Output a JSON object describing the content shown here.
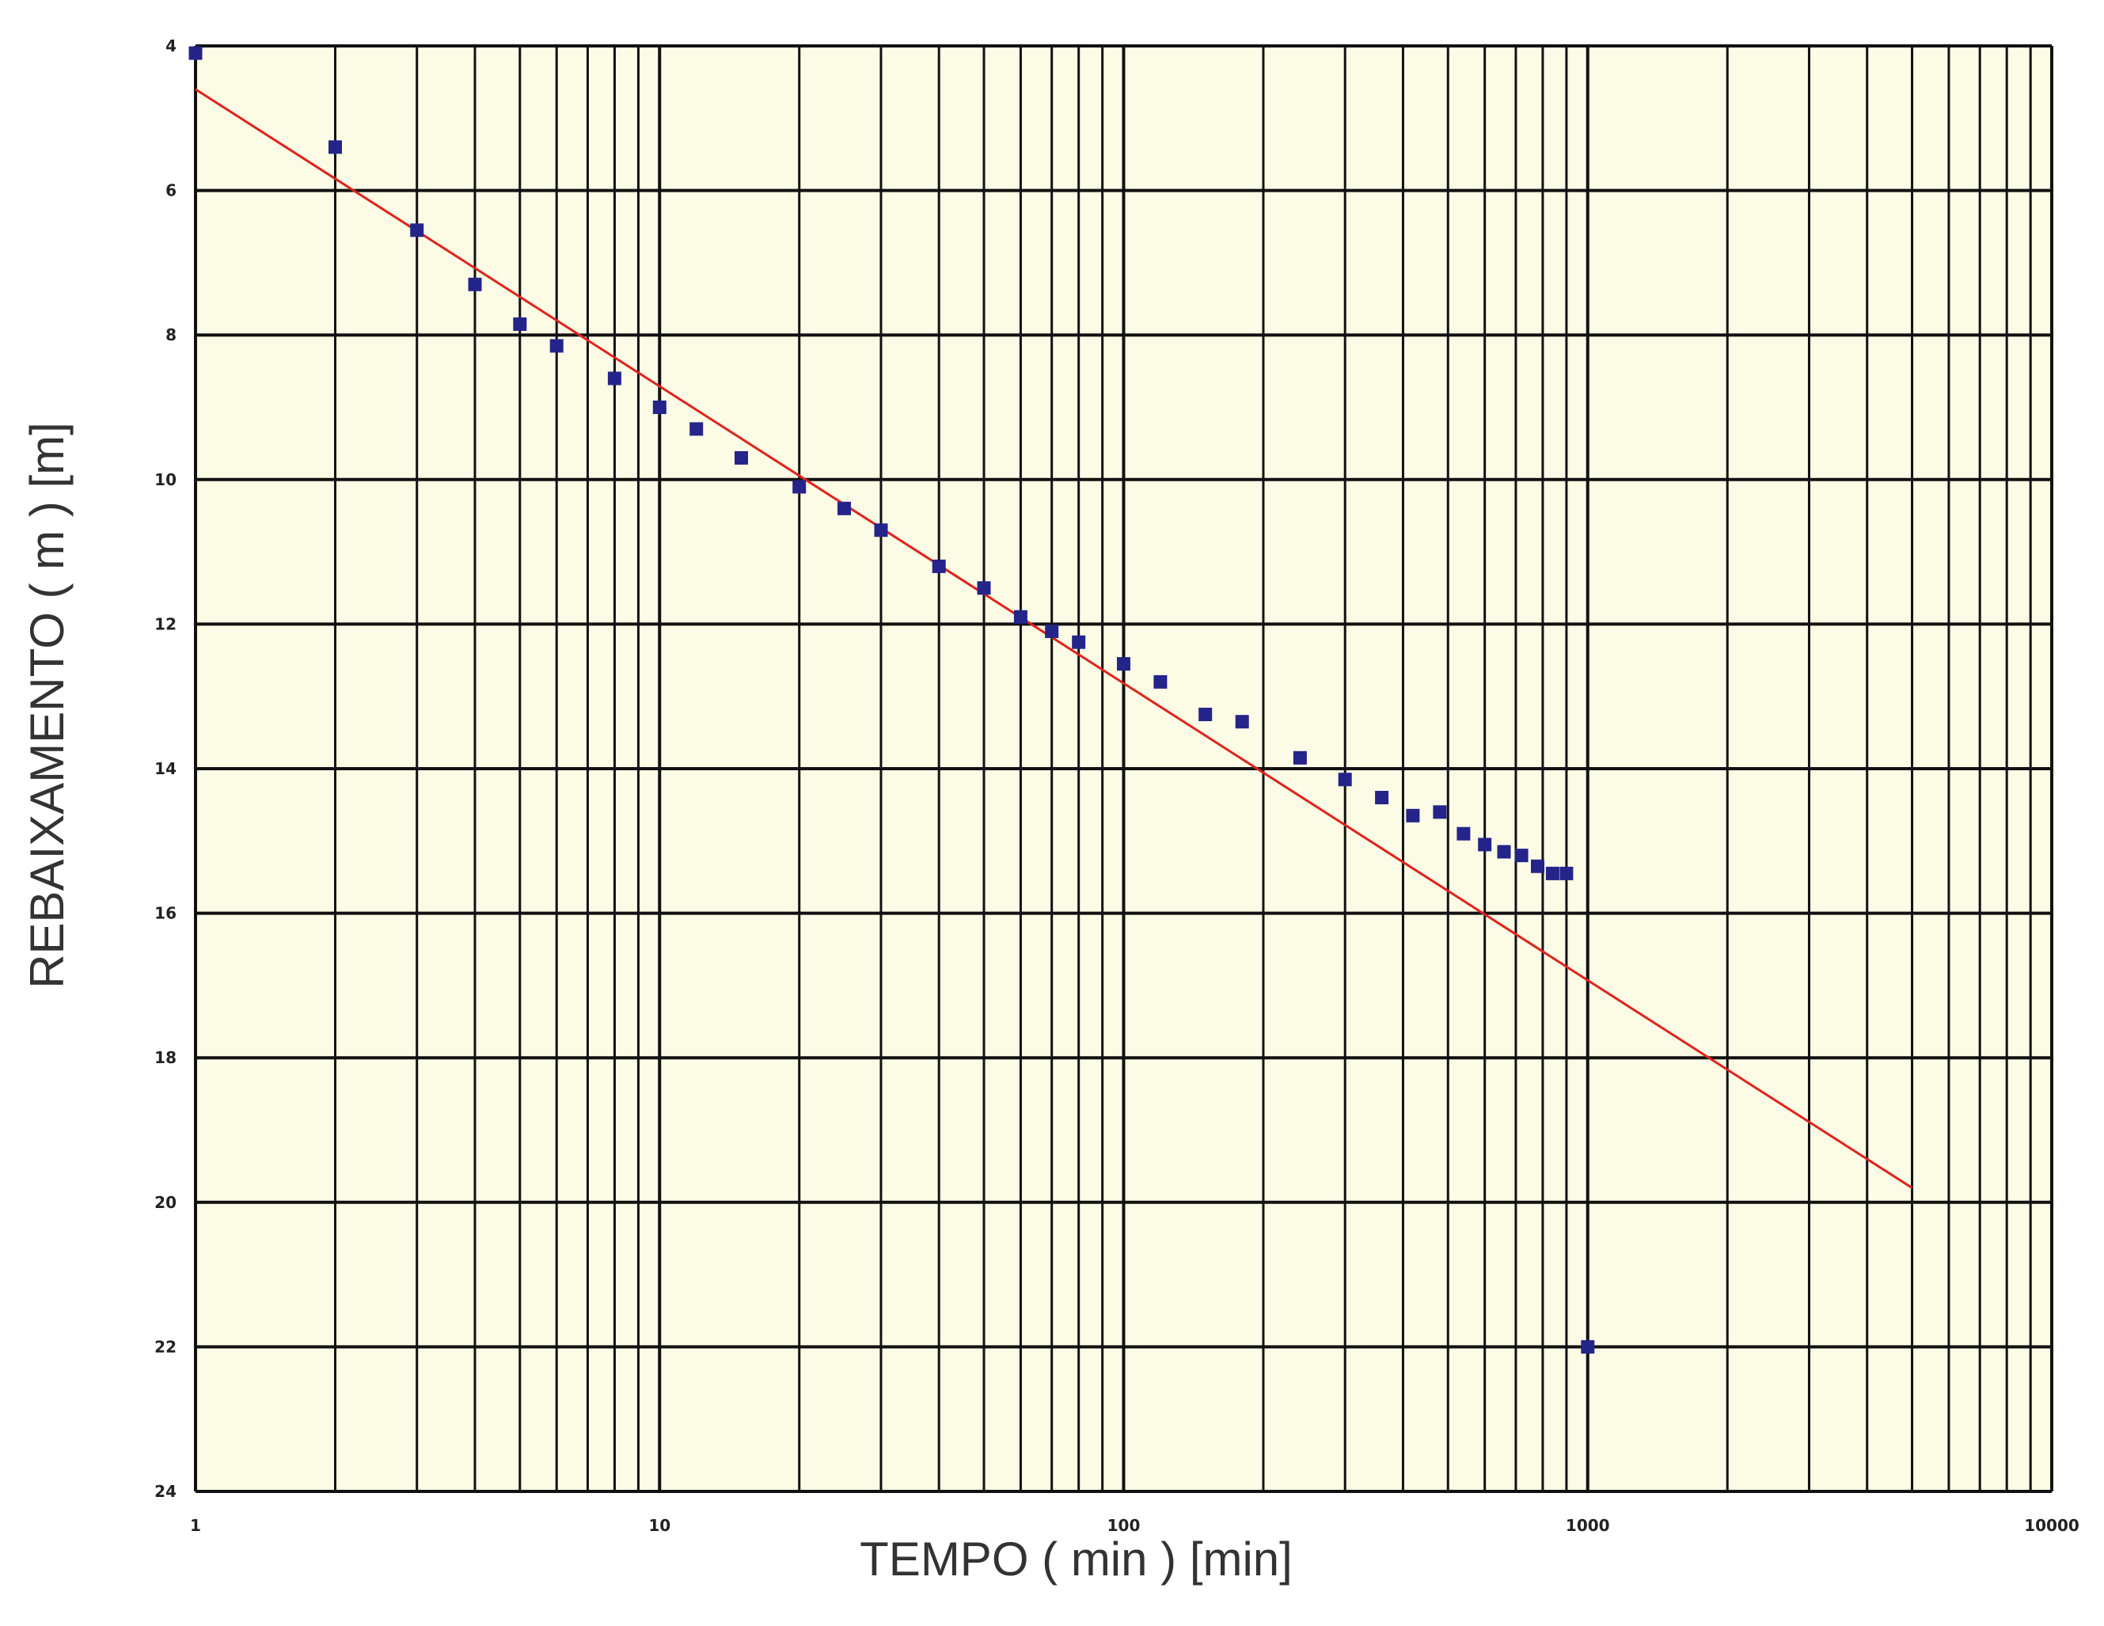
{
  "colors": {
    "plot_background": "#fbfbe6",
    "grid": "#111111",
    "fit_line": "#e0231b",
    "points": "#24248a"
  },
  "chart_data": {
    "type": "scatter",
    "x_scale": "log",
    "y_inverted": true,
    "xlim": [
      1,
      10000
    ],
    "ylim": [
      4,
      24
    ],
    "grid": true,
    "xlabel": "TEMPO ( min ) [min]",
    "ylabel": "REBAIXAMENTO ( m ) [m]",
    "x_ticks": [
      "1",
      "10",
      "100",
      "1000",
      "10000"
    ],
    "y_ticks": [
      "4",
      "6",
      "8",
      "10",
      "12",
      "14",
      "16",
      "18",
      "20",
      "22",
      "24"
    ],
    "series": [
      {
        "kind": "scatter",
        "marker": "square",
        "color": "#24248a",
        "x": [
          1,
          2,
          3,
          4,
          5,
          6,
          8,
          10,
          12,
          15,
          20,
          25,
          30,
          40,
          50,
          60,
          70,
          80,
          100,
          120,
          150,
          180,
          240,
          300,
          360,
          420,
          480,
          540,
          600,
          660,
          720,
          780,
          840,
          900,
          1000
        ],
        "y": [
          4.1,
          5.4,
          6.55,
          7.3,
          7.85,
          8.15,
          8.6,
          9.0,
          9.3,
          9.7,
          10.1,
          10.4,
          10.7,
          11.2,
          11.5,
          11.9,
          12.1,
          12.25,
          12.55,
          12.8,
          13.25,
          13.35,
          13.85,
          14.15,
          14.4,
          14.65,
          14.6,
          14.9,
          15.05,
          15.15,
          15.2,
          15.35,
          15.45,
          15.45,
          22.0
        ]
      },
      {
        "kind": "line",
        "color": "#e0231b",
        "x": [
          1,
          5000
        ],
        "y": [
          4.6,
          19.8
        ]
      }
    ]
  }
}
